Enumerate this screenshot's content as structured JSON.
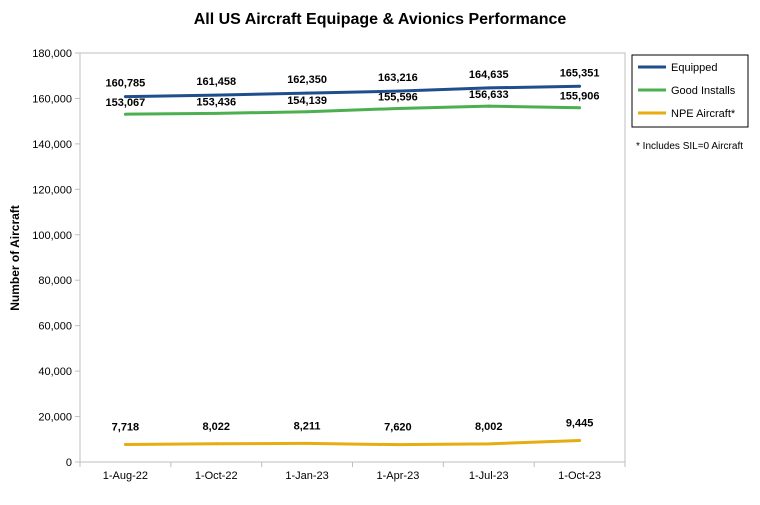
{
  "chart_data": {
    "type": "line",
    "title": "All US Aircraft Equipage & Avionics Performance",
    "xlabel": "",
    "ylabel": "Number of Aircraft",
    "categories": [
      "1-Aug-22",
      "1-Oct-22",
      "1-Jan-23",
      "1-Apr-23",
      "1-Jul-23",
      "1-Oct-23"
    ],
    "ylim": [
      0,
      180000
    ],
    "yticks": [
      0,
      20000,
      40000,
      60000,
      80000,
      100000,
      120000,
      140000,
      160000,
      180000
    ],
    "ytick_labels": [
      "0",
      "20,000",
      "40,000",
      "60,000",
      "80,000",
      "100,000",
      "120,000",
      "140,000",
      "160,000",
      "180,000"
    ],
    "grid": false,
    "legend_position": "right",
    "series": [
      {
        "name": "Equipped",
        "color": "#1f4e8c",
        "values": [
          160785,
          161458,
          162350,
          163216,
          164635,
          165351
        ],
        "labels": [
          "160,785",
          "161,458",
          "162,350",
          "163,216",
          "164,635",
          "165,351"
        ]
      },
      {
        "name": "Good Installs",
        "color": "#4caf50",
        "values": [
          153067,
          153436,
          154139,
          155596,
          156633,
          155906
        ],
        "labels": [
          "153,067",
          "153,436",
          "154,139",
          "155,596",
          "156,633",
          "155,906"
        ]
      },
      {
        "name": "NPE Aircraft*",
        "color": "#e6ac12",
        "values": [
          7718,
          8022,
          8211,
          7620,
          8002,
          9445
        ],
        "labels": [
          "7,718",
          "8,022",
          "8,211",
          "7,620",
          "8,002",
          "9,445"
        ]
      }
    ],
    "footnote": "* Includes SIL=0 Aircraft"
  }
}
